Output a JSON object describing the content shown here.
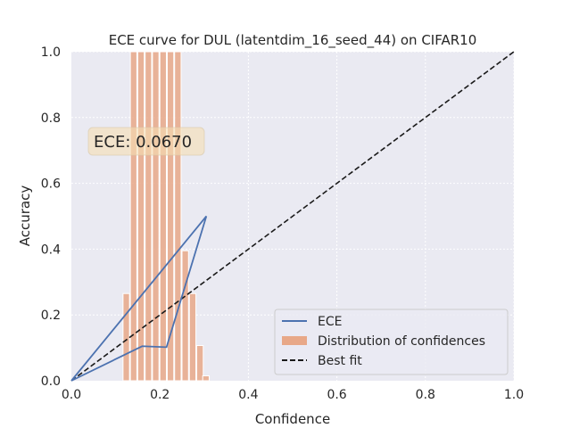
{
  "chart_data": {
    "type": "line",
    "title": "ECE curve for DUL (latentdim_16_seed_44) on CIFAR10",
    "xlabel": "Confidence",
    "ylabel": "Accuracy",
    "xlim": [
      0,
      1
    ],
    "ylim": [
      0,
      1
    ],
    "xticks": [
      "0.0",
      "0.2",
      "0.4",
      "0.6",
      "0.8",
      "1.0"
    ],
    "yticks": [
      "0.0",
      "0.2",
      "0.4",
      "0.6",
      "0.8",
      "1.0"
    ],
    "grid": true,
    "legend_placement": "lower-right",
    "annotation": "ECE: 0.0670",
    "series": [
      {
        "name": "ECE",
        "kind": "line",
        "color": "#4c72b0",
        "points": [
          [
            0.0,
            0.0
          ],
          [
            0.16,
            0.105
          ],
          [
            0.215,
            0.102
          ],
          [
            0.305,
            0.5
          ],
          [
            0.0,
            0.0
          ]
        ]
      },
      {
        "name": "Distribution of confidences",
        "kind": "histogram",
        "color": "#e8a888",
        "bin_width": 0.01667,
        "bins": [
          [
            0.1167,
            0.265
          ],
          [
            0.1333,
            1.0
          ],
          [
            0.15,
            1.0
          ],
          [
            0.1667,
            1.0
          ],
          [
            0.1833,
            1.0
          ],
          [
            0.2,
            1.0
          ],
          [
            0.2167,
            1.0
          ],
          [
            0.2333,
            1.0
          ],
          [
            0.25,
            0.395
          ],
          [
            0.2667,
            0.265
          ],
          [
            0.2833,
            0.107
          ],
          [
            0.2967,
            0.015
          ]
        ]
      },
      {
        "name": "Best fit",
        "kind": "dashed-line",
        "color": "#1a1a1a",
        "points": [
          [
            0,
            0
          ],
          [
            1,
            1
          ]
        ]
      }
    ]
  }
}
